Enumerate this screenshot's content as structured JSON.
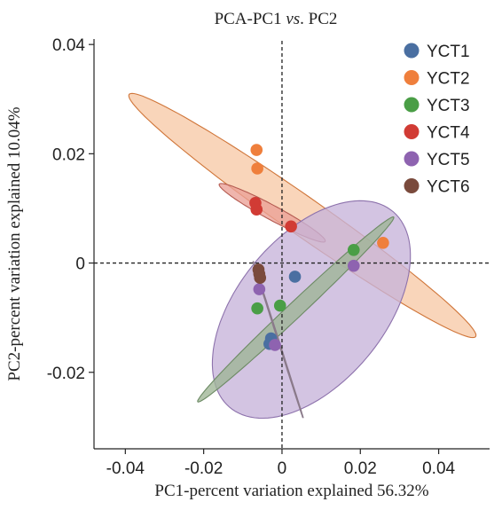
{
  "chart_data": {
    "type": "scatter",
    "title_prefix": "PCA-PC1 ",
    "title_italic": "vs",
    "title_suffix": ". PC2",
    "xlabel": "PC1-percent variation explained 56.32%",
    "ylabel": "PC2-percent variation explained 10.04%",
    "xlim": [
      -0.048,
      0.053
    ],
    "ylim": [
      -0.034,
      0.041
    ],
    "x_ticks": [
      {
        "value": -0.04,
        "label": "-0.04"
      },
      {
        "value": -0.02,
        "label": "-0.02"
      },
      {
        "value": 0,
        "label": "0"
      },
      {
        "value": 0.02,
        "label": "0.02"
      },
      {
        "value": 0.04,
        "label": "0.04"
      }
    ],
    "y_ticks": [
      {
        "value": -0.02,
        "label": "-0.02"
      },
      {
        "value": 0,
        "label": "0"
      },
      {
        "value": 0.02,
        "label": "0.02"
      },
      {
        "value": 0.04,
        "label": "0.04"
      }
    ],
    "reference_lines": {
      "x": 0,
      "y": 0,
      "style": "dashed"
    },
    "legend_position": "top-right",
    "series": [
      {
        "name": "YCT1",
        "color": "#4a6fa1",
        "points": [
          [
            0.0033,
            -0.0025
          ],
          [
            -0.0028,
            -0.0138
          ],
          [
            -0.0032,
            -0.0148
          ]
        ]
      },
      {
        "name": "YCT2",
        "color": "#ef7f3c",
        "points": [
          [
            -0.0065,
            0.0207
          ],
          [
            -0.0063,
            0.0173
          ],
          [
            0.0258,
            0.0037
          ]
        ]
      },
      {
        "name": "YCT3",
        "color": "#4a9e46",
        "points": [
          [
            0.0183,
            0.0024
          ],
          [
            -0.0005,
            -0.0078
          ],
          [
            -0.0063,
            -0.0083
          ]
        ]
      },
      {
        "name": "YCT4",
        "color": "#d13b34",
        "points": [
          [
            -0.0068,
            0.011
          ],
          [
            -0.0065,
            0.0098
          ],
          [
            0.0023,
            0.0067
          ]
        ]
      },
      {
        "name": "YCT5",
        "color": "#8e63b0",
        "points": [
          [
            0.0183,
            -0.0005
          ],
          [
            -0.0058,
            -0.0048
          ],
          [
            -0.0018,
            -0.015
          ]
        ]
      },
      {
        "name": "YCT6",
        "color": "#7a4a3c",
        "points": [
          [
            -0.006,
            -0.0012
          ],
          [
            -0.0058,
            -0.002
          ],
          [
            -0.0056,
            -0.0027
          ]
        ]
      }
    ],
    "ellipses": [
      {
        "series": "YCT2",
        "center": [
          0.0052,
          0.0087
        ],
        "semi_axes": [
          0.0495,
          0.0038
        ],
        "angle_deg": -26.5,
        "fill": "#f7c9a6",
        "stroke": "#d0763a"
      },
      {
        "series": "YCT4",
        "center": [
          -0.0025,
          0.0092
        ],
        "semi_axes": [
          0.0145,
          0.0014
        ],
        "angle_deg": -21,
        "fill": "#eaa096",
        "stroke": "#b45a50"
      },
      {
        "series": "YCT5",
        "center": [
          0.0075,
          -0.0085
        ],
        "semi_axes": [
          0.0282,
          0.0155
        ],
        "angle_deg": 32,
        "fill": "#c7b3da",
        "stroke": "#8d72ac"
      },
      {
        "series": "YCT3",
        "center": [
          0.0035,
          -0.0085
        ],
        "semi_axes": [
          0.0302,
          0.0016
        ],
        "angle_deg": 34,
        "fill": "#9db595",
        "stroke": "#6c8a64"
      },
      {
        "series": "YCT6",
        "center": [
          -0.001,
          -0.014
        ],
        "semi_axes": [
          0.0157,
          0.0001
        ],
        "angle_deg": -66,
        "fill": "none",
        "stroke": "#8a7a8a"
      }
    ]
  }
}
